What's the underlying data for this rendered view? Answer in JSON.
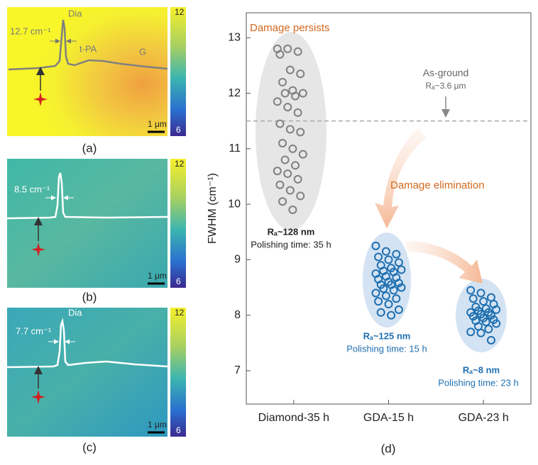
{
  "panels": [
    {
      "label": "(a)",
      "peak": "Dia",
      "width": "12.7 cm⁻¹",
      "annotations": [
        "t-PA",
        "G"
      ],
      "scale_bar": "1 μm",
      "colorbar_ticks": [
        12,
        6
      ]
    },
    {
      "label": "(b)",
      "width": "8.5 cm⁻¹",
      "scale_bar": "1 μm",
      "colorbar_ticks": [
        12,
        6
      ]
    },
    {
      "label": "(c)",
      "peak": "Dia",
      "width": "7.7 cm⁻¹",
      "scale_bar": "1 μm",
      "colorbar_ticks": [
        12,
        6
      ]
    }
  ],
  "chart_data": {
    "type": "scatter",
    "label": "(d)",
    "y_label": "FWHM (cm⁻¹)",
    "categories": [
      "Diamond-35 h",
      "GDA-15 h",
      "GDA-23 h"
    ],
    "ylim": [
      6.4,
      13.45
    ],
    "yticks": [
      7,
      8,
      9,
      10,
      11,
      12,
      13
    ],
    "reference_line": 11.5,
    "annotations": [
      "Damage persists",
      "As-ground",
      "Rₐ~3.6 μm",
      "Damage elimination"
    ],
    "series": [
      {
        "color": "#808080",
        "label": "Rₐ~128 nm",
        "sublabel": "Polishing time: 35 h",
        "values": [
          12.8,
          12.8,
          12.75,
          12.7,
          12.42,
          12.35,
          12.2,
          12.05,
          12.0,
          12.0,
          11.95,
          11.85,
          11.75,
          11.65,
          11.45,
          11.35,
          11.3,
          11.1,
          11.0,
          10.9,
          10.8,
          10.7,
          10.6,
          10.55,
          10.45,
          10.35,
          10.25,
          10.15,
          10.05,
          9.9
        ]
      },
      {
        "color": "#1f6fb0",
        "label": "Rₐ~125 nm",
        "sublabel": "Polishing time: 15 h",
        "values": [
          9.25,
          9.15,
          9.1,
          9.05,
          9.0,
          8.95,
          8.9,
          8.85,
          8.82,
          8.8,
          8.78,
          8.75,
          8.7,
          8.68,
          8.65,
          8.6,
          8.58,
          8.55,
          8.55,
          8.5,
          8.48,
          8.45,
          8.4,
          8.35,
          8.3,
          8.25,
          8.2,
          8.1,
          8.05,
          8.0
        ]
      },
      {
        "color": "#1f6fb0",
        "label": "Rₐ~8 nm",
        "sublabel": "Polishing time: 23 h",
        "values": [
          8.45,
          8.4,
          8.32,
          8.3,
          8.25,
          8.2,
          8.15,
          8.12,
          8.1,
          8.08,
          8.05,
          8.05,
          8.02,
          8.0,
          7.98,
          7.95,
          7.92,
          7.9,
          7.88,
          7.85,
          7.8,
          7.75,
          7.7,
          7.68,
          7.55
        ]
      }
    ]
  }
}
